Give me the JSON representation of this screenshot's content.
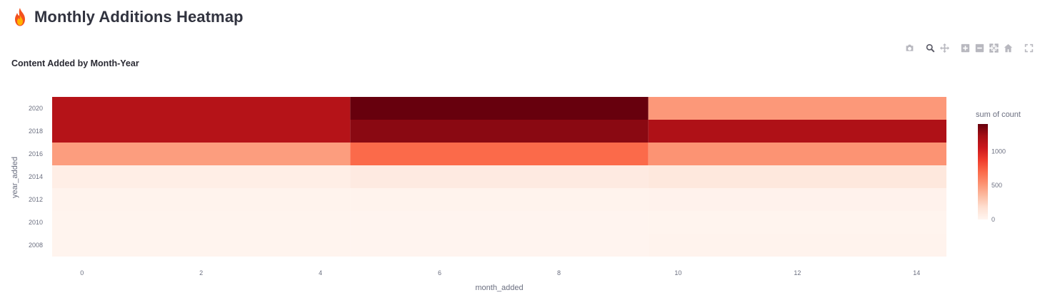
{
  "header": {
    "emoji": "fire-icon",
    "title": "Monthly Additions Heatmap"
  },
  "modebar": {
    "buttons": [
      "camera-icon",
      "zoom-icon",
      "pan-icon",
      "zoom-in-icon",
      "zoom-out-icon",
      "autoscale-icon",
      "reset-axes-icon",
      "fullscreen-icon"
    ],
    "active": "zoom-icon"
  },
  "colors": {
    "scale": [
      "#fff5f0",
      "#fee0d2",
      "#fcbba1",
      "#fc9272",
      "#fb6a4a",
      "#ef3b2c",
      "#cb181d",
      "#a50f15",
      "#67000d"
    ]
  },
  "chart_data": {
    "type": "heatmap",
    "title": "Content Added by Month-Year",
    "xlabel": "month_added",
    "ylabel": "year_added",
    "x_bins": [
      [
        -0.5,
        4.5
      ],
      [
        4.5,
        9.5
      ],
      [
        9.5,
        14.5
      ]
    ],
    "y_bins": [
      [
        2007,
        2009
      ],
      [
        2009,
        2011
      ],
      [
        2011,
        2013
      ],
      [
        2013,
        2015
      ],
      [
        2015,
        2017
      ],
      [
        2017,
        2019
      ],
      [
        2019,
        2021
      ]
    ],
    "z": [
      [
        10,
        5,
        15
      ],
      [
        10,
        8,
        12
      ],
      [
        20,
        15,
        25
      ],
      [
        60,
        90,
        110
      ],
      [
        480,
        700,
        520
      ],
      [
        1150,
        1300,
        1180
      ],
      [
        1150,
        1400,
        500
      ]
    ],
    "xlim": [
      -0.5,
      14.5
    ],
    "ylim": [
      2007,
      2021
    ],
    "x_ticks": [
      0,
      2,
      4,
      6,
      8,
      10,
      12,
      14
    ],
    "y_ticks": [
      2008,
      2010,
      2012,
      2014,
      2016,
      2018,
      2020
    ],
    "colorbar": {
      "title": "sum of count",
      "ticks": [
        0,
        500,
        1000
      ],
      "range": [
        0,
        1400
      ]
    }
  }
}
